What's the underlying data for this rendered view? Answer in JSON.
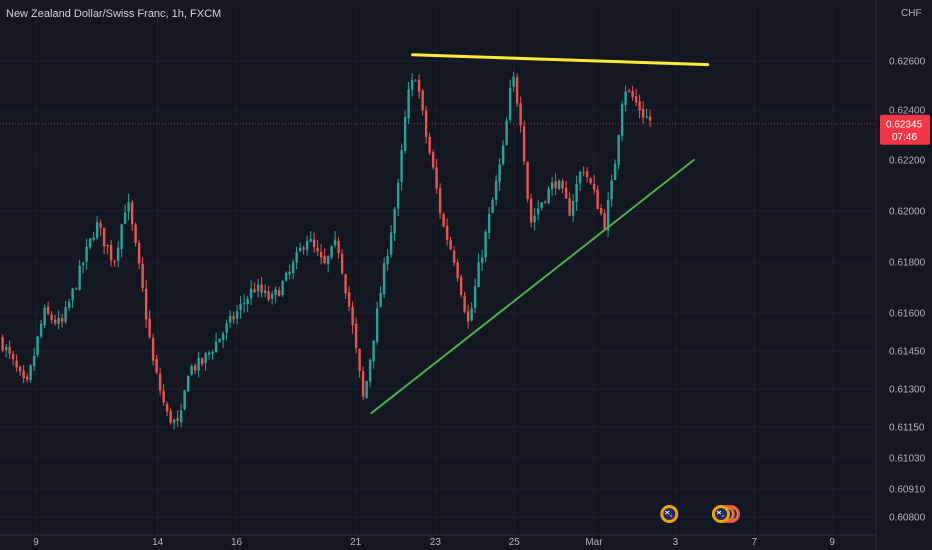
{
  "chart_data": {
    "type": "candlestick",
    "title": "New Zealand Dollar/Swiss Franc, 1h, FXCM",
    "currency": "CHF",
    "ylim": [
      0.6074,
      0.6283
    ],
    "y_ticks": [
      "0.62600",
      "0.62400",
      "0.62200",
      "0.62000",
      "0.61800",
      "0.61600",
      "0.61450",
      "0.61300",
      "0.61150",
      "0.61030",
      "0.60910",
      "0.60800"
    ],
    "x_ticks": [
      "9",
      "14",
      "16",
      "21",
      "23",
      "25",
      "Mar",
      "3",
      "7",
      "9"
    ],
    "last_price": "0.62345",
    "countdown": "07:46",
    "colors": {
      "background": "#131722",
      "up": "#26a69a",
      "down": "#ef5350",
      "resistance": "#ffeb3b",
      "support": "#4caf50",
      "price_label": "#f23645"
    },
    "path": [
      [
        0.0,
        0.615
      ],
      [
        0.03,
        0.613
      ],
      [
        0.05,
        0.616
      ],
      [
        0.07,
        0.6155
      ],
      [
        0.09,
        0.6175
      ],
      [
        0.11,
        0.6195
      ],
      [
        0.13,
        0.618
      ],
      [
        0.145,
        0.6205
      ],
      [
        0.16,
        0.6175
      ],
      [
        0.175,
        0.614
      ],
      [
        0.19,
        0.612
      ],
      [
        0.205,
        0.6115
      ],
      [
        0.215,
        0.6138
      ],
      [
        0.23,
        0.614
      ],
      [
        0.25,
        0.615
      ],
      [
        0.27,
        0.616
      ],
      [
        0.29,
        0.617
      ],
      [
        0.31,
        0.6165
      ],
      [
        0.33,
        0.6175
      ],
      [
        0.35,
        0.619
      ],
      [
        0.37,
        0.6178
      ],
      [
        0.385,
        0.6188
      ],
      [
        0.4,
        0.616
      ],
      [
        0.415,
        0.6125
      ],
      [
        0.425,
        0.6148
      ],
      [
        0.44,
        0.618
      ],
      [
        0.455,
        0.621
      ],
      [
        0.465,
        0.6245
      ],
      [
        0.475,
        0.6255
      ],
      [
        0.485,
        0.6232
      ],
      [
        0.495,
        0.6215
      ],
      [
        0.505,
        0.6195
      ],
      [
        0.52,
        0.618
      ],
      [
        0.535,
        0.6155
      ],
      [
        0.545,
        0.6175
      ],
      [
        0.56,
        0.62
      ],
      [
        0.575,
        0.6225
      ],
      [
        0.585,
        0.6255
      ],
      [
        0.595,
        0.6235
      ],
      [
        0.605,
        0.6195
      ],
      [
        0.62,
        0.6205
      ],
      [
        0.635,
        0.6212
      ],
      [
        0.65,
        0.62
      ],
      [
        0.665,
        0.6218
      ],
      [
        0.68,
        0.6205
      ],
      [
        0.69,
        0.6195
      ],
      [
        0.7,
        0.6213
      ],
      [
        0.712,
        0.625
      ],
      [
        0.722,
        0.6245
      ],
      [
        0.735,
        0.6238
      ],
      [
        0.745,
        0.6235
      ]
    ],
    "trendlines": [
      {
        "name": "resistance",
        "from": [
          0.471,
          0.62625
        ],
        "to": [
          0.808,
          0.62585
        ]
      },
      {
        "name": "support",
        "from": [
          0.424,
          0.61205
        ],
        "to": [
          0.792,
          0.622
        ]
      }
    ],
    "price_line_value": 0.62345,
    "event_markers": [
      {
        "x": 0.764,
        "count": 1,
        "icon": "nz-flag-icon"
      },
      {
        "x": 0.823,
        "count": 3,
        "icon": "nz-flag-icon"
      }
    ]
  }
}
